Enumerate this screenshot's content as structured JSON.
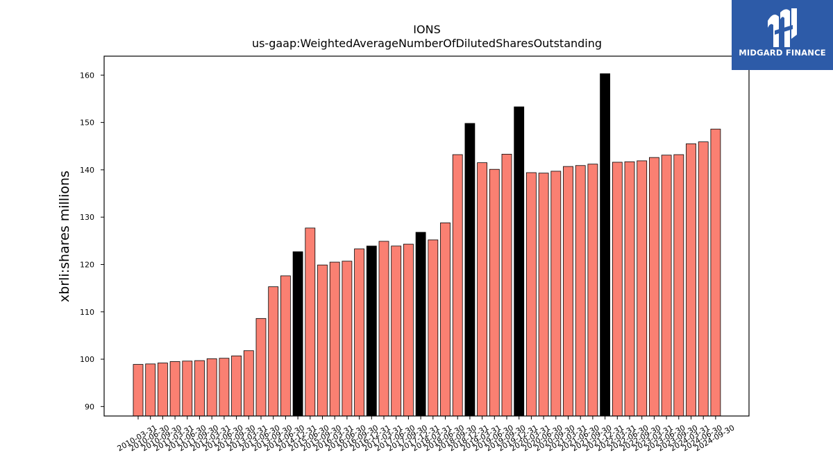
{
  "chart_data": {
    "type": "bar",
    "title": "IONS",
    "subtitle": "us-gaap:WeightedAverageNumberOfDilutedSharesOutstanding",
    "xlabel": "",
    "ylabel": "xbrli:shares millions",
    "ylim": [
      88,
      164
    ],
    "yticks": [
      90,
      100,
      110,
      120,
      130,
      140,
      150,
      160
    ],
    "grid": false,
    "colors": {
      "default": "#fa8072",
      "highlight": "#000000",
      "edge": "#000000"
    },
    "categories": [
      "2010-03-31",
      "2010-06-30",
      "2010-09-30",
      "2011-03-31",
      "2011-06-30",
      "2011-09-30",
      "2012-03-31",
      "2012-06-30",
      "2012-09-30",
      "2013-03-31",
      "2013-06-30",
      "2013-09-30",
      "2014-06-30",
      "2014-12-31",
      "2015-06-30",
      "2015-09-30",
      "2016-03-31",
      "2016-06-30",
      "2016-09-30",
      "2016-12-31",
      "2017-03-31",
      "2017-06-30",
      "2017-09-30",
      "2017-12-31",
      "2018-03-31",
      "2018-06-30",
      "2018-09-30",
      "2018-12-31",
      "2019-03-31",
      "2019-06-30",
      "2019-09-30",
      "2019-12-31",
      "2020-03-31",
      "2020-06-30",
      "2020-09-30",
      "2021-03-31",
      "2021-06-30",
      "2021-09-30",
      "2021-12-31",
      "2022-03-31",
      "2022-06-30",
      "2022-09-30",
      "2023-03-31",
      "2023-06-30",
      "2023-09-30",
      "2024-03-31",
      "2024-06-30",
      "2024-09-30"
    ],
    "values": [
      98.9,
      99.0,
      99.2,
      99.5,
      99.6,
      99.7,
      100.1,
      100.2,
      100.7,
      101.8,
      108.6,
      115.3,
      117.6,
      122.7,
      127.7,
      119.9,
      120.5,
      120.7,
      123.3,
      123.9,
      124.9,
      123.9,
      124.3,
      126.8,
      125.2,
      128.8,
      143.2,
      149.8,
      141.5,
      140.1,
      143.3,
      153.3,
      139.4,
      139.3,
      139.7,
      140.7,
      140.9,
      141.2,
      160.3,
      141.6,
      141.7,
      141.9,
      142.6,
      143.1,
      143.2,
      145.5,
      145.9,
      148.6
    ],
    "highlight_categories": [
      "2014-12-31",
      "2016-12-31",
      "2017-12-31",
      "2018-12-31",
      "2019-12-31",
      "2021-12-31"
    ]
  },
  "logo": {
    "text": "MIDGARD FINANCE",
    "icon": "midgard-logo-mark-icon",
    "background": "#2d5ba8"
  }
}
